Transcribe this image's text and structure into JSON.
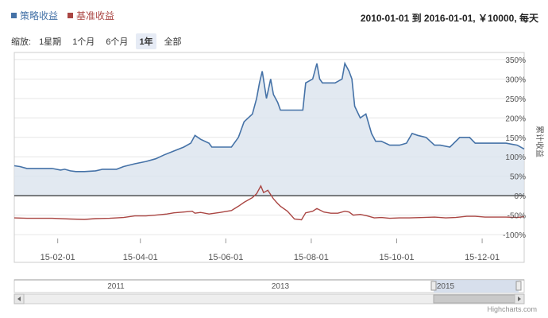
{
  "legend": {
    "strategy_label": "策略收益",
    "benchmark_label": "基准收益"
  },
  "range_info": "2010-01-01 到 2016-01-01, ￥10000, 每天",
  "zoom": {
    "label": "缩放:",
    "buttons": [
      "1星期",
      "1个月",
      "6个月",
      "1年",
      "全部"
    ],
    "active": "1年"
  },
  "colors": {
    "strategy": "#4572a7",
    "benchmark": "#aa4643",
    "area_fill": "#dbe3ee",
    "grid": "#e6e6e6"
  },
  "navigator": {
    "year_labels": [
      "2011",
      "2013",
      "2015"
    ]
  },
  "credit": "Highcharts.com",
  "chart_data": {
    "type": "line",
    "y_axis_title": "累计收益",
    "ylim": [
      -100,
      350
    ],
    "y_ticks": [
      "-100%",
      "-50%",
      "0%",
      "50%",
      "100%",
      "150%",
      "200%",
      "250%",
      "300%",
      "350%"
    ],
    "y_tick_values": [
      -100,
      -50,
      0,
      50,
      100,
      150,
      200,
      250,
      300,
      350
    ],
    "x_tick_labels": [
      "15-02-01",
      "15-04-01",
      "15-06-01",
      "15-08-01",
      "15-10-01",
      "15-12-01"
    ],
    "x_tick_dates": [
      "2015-02-01",
      "2015-04-01",
      "2015-06-01",
      "2015-08-01",
      "2015-10-01",
      "2015-12-01"
    ],
    "xlim": [
      "2015-01-01",
      "2015-12-31"
    ],
    "grid": true,
    "legend_position": "top-left",
    "series": [
      {
        "name": "策略收益",
        "points": [
          [
            "2015-01-01",
            77
          ],
          [
            "2015-01-05",
            75
          ],
          [
            "2015-01-10",
            70
          ],
          [
            "2015-01-20",
            70
          ],
          [
            "2015-01-28",
            70
          ],
          [
            "2015-02-03",
            66
          ],
          [
            "2015-02-06",
            68
          ],
          [
            "2015-02-10",
            64
          ],
          [
            "2015-02-14",
            62
          ],
          [
            "2015-02-20",
            62
          ],
          [
            "2015-02-28",
            64
          ],
          [
            "2015-03-05",
            68
          ],
          [
            "2015-03-15",
            68
          ],
          [
            "2015-03-20",
            75
          ],
          [
            "2015-03-28",
            82
          ],
          [
            "2015-04-05",
            88
          ],
          [
            "2015-04-12",
            95
          ],
          [
            "2015-04-18",
            105
          ],
          [
            "2015-04-25",
            115
          ],
          [
            "2015-05-02",
            125
          ],
          [
            "2015-05-07",
            135
          ],
          [
            "2015-05-10",
            155
          ],
          [
            "2015-05-14",
            145
          ],
          [
            "2015-05-20",
            135
          ],
          [
            "2015-05-22",
            125
          ],
          [
            "2015-05-28",
            125
          ],
          [
            "2015-06-05",
            125
          ],
          [
            "2015-06-10",
            150
          ],
          [
            "2015-06-14",
            190
          ],
          [
            "2015-06-20",
            210
          ],
          [
            "2015-06-23",
            250
          ],
          [
            "2015-06-25",
            290
          ],
          [
            "2015-06-27",
            320
          ],
          [
            "2015-06-30",
            250
          ],
          [
            "2015-07-03",
            300
          ],
          [
            "2015-07-05",
            260
          ],
          [
            "2015-07-08",
            240
          ],
          [
            "2015-07-10",
            220
          ],
          [
            "2015-07-15",
            220
          ],
          [
            "2015-07-20",
            220
          ],
          [
            "2015-07-26",
            220
          ],
          [
            "2015-07-28",
            290
          ],
          [
            "2015-08-02",
            300
          ],
          [
            "2015-08-05",
            340
          ],
          [
            "2015-08-07",
            300
          ],
          [
            "2015-08-09",
            290
          ],
          [
            "2015-08-12",
            290
          ],
          [
            "2015-08-18",
            290
          ],
          [
            "2015-08-23",
            300
          ],
          [
            "2015-08-25",
            340
          ],
          [
            "2015-08-28",
            320
          ],
          [
            "2015-08-30",
            300
          ],
          [
            "2015-09-01",
            230
          ],
          [
            "2015-09-05",
            200
          ],
          [
            "2015-09-09",
            210
          ],
          [
            "2015-09-13",
            160
          ],
          [
            "2015-09-16",
            140
          ],
          [
            "2015-09-20",
            140
          ],
          [
            "2015-09-26",
            130
          ],
          [
            "2015-10-03",
            130
          ],
          [
            "2015-10-08",
            135
          ],
          [
            "2015-10-12",
            160
          ],
          [
            "2015-10-16",
            155
          ],
          [
            "2015-10-22",
            150
          ],
          [
            "2015-10-28",
            130
          ],
          [
            "2015-11-01",
            130
          ],
          [
            "2015-11-08",
            125
          ],
          [
            "2015-11-15",
            150
          ],
          [
            "2015-11-22",
            150
          ],
          [
            "2015-11-26",
            135
          ],
          [
            "2015-12-03",
            135
          ],
          [
            "2015-12-10",
            135
          ],
          [
            "2015-12-18",
            135
          ],
          [
            "2015-12-26",
            130
          ],
          [
            "2015-12-31",
            120
          ]
        ]
      },
      {
        "name": "基准收益",
        "points": [
          [
            "2015-01-01",
            -57
          ],
          [
            "2015-01-10",
            -58
          ],
          [
            "2015-01-20",
            -58
          ],
          [
            "2015-01-28",
            -58
          ],
          [
            "2015-02-10",
            -60
          ],
          [
            "2015-02-20",
            -61
          ],
          [
            "2015-02-28",
            -59
          ],
          [
            "2015-03-10",
            -58
          ],
          [
            "2015-03-20",
            -56
          ],
          [
            "2015-03-28",
            -52
          ],
          [
            "2015-04-05",
            -52
          ],
          [
            "2015-04-12",
            -50
          ],
          [
            "2015-04-20",
            -47
          ],
          [
            "2015-04-25",
            -44
          ],
          [
            "2015-05-02",
            -42
          ],
          [
            "2015-05-08",
            -40
          ],
          [
            "2015-05-10",
            -45
          ],
          [
            "2015-05-14",
            -43
          ],
          [
            "2015-05-20",
            -47
          ],
          [
            "2015-05-22",
            -46
          ],
          [
            "2015-05-28",
            -43
          ],
          [
            "2015-06-05",
            -38
          ],
          [
            "2015-06-10",
            -27
          ],
          [
            "2015-06-14",
            -17
          ],
          [
            "2015-06-20",
            -5
          ],
          [
            "2015-06-23",
            5
          ],
          [
            "2015-06-26",
            25
          ],
          [
            "2015-06-28",
            8
          ],
          [
            "2015-07-01",
            14
          ],
          [
            "2015-07-05",
            -8
          ],
          [
            "2015-07-08",
            -20
          ],
          [
            "2015-07-10",
            -27
          ],
          [
            "2015-07-15",
            -40
          ],
          [
            "2015-07-20",
            -60
          ],
          [
            "2015-07-25",
            -62
          ],
          [
            "2015-07-28",
            -44
          ],
          [
            "2015-08-02",
            -40
          ],
          [
            "2015-08-05",
            -33
          ],
          [
            "2015-08-10",
            -42
          ],
          [
            "2015-08-15",
            -45
          ],
          [
            "2015-08-20",
            -45
          ],
          [
            "2015-08-25",
            -40
          ],
          [
            "2015-08-28",
            -42
          ],
          [
            "2015-08-31",
            -50
          ],
          [
            "2015-09-05",
            -48
          ],
          [
            "2015-09-10",
            -52
          ],
          [
            "2015-09-15",
            -57
          ],
          [
            "2015-09-20",
            -56
          ],
          [
            "2015-09-26",
            -58
          ],
          [
            "2015-10-03",
            -57
          ],
          [
            "2015-10-10",
            -57
          ],
          [
            "2015-10-20",
            -56
          ],
          [
            "2015-10-28",
            -55
          ],
          [
            "2015-11-05",
            -57
          ],
          [
            "2015-11-12",
            -56
          ],
          [
            "2015-11-20",
            -53
          ],
          [
            "2015-11-26",
            -53
          ],
          [
            "2015-12-03",
            -55
          ],
          [
            "2015-12-10",
            -55
          ],
          [
            "2015-12-18",
            -55
          ],
          [
            "2015-12-26",
            -56
          ],
          [
            "2015-12-31",
            -54
          ]
        ]
      }
    ]
  }
}
